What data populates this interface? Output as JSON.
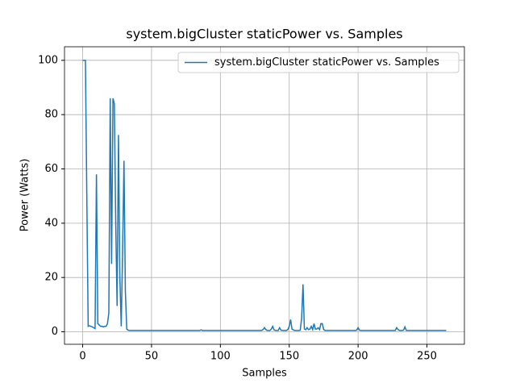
{
  "chart_data": {
    "type": "line",
    "title": "system.bigCluster staticPower vs. Samples",
    "x_label": "Samples",
    "y_label": "Power (Watts)",
    "x": [
      0,
      1,
      2,
      3,
      4,
      5,
      6,
      7,
      8,
      9,
      10,
      11,
      12,
      13,
      14,
      15,
      16,
      17,
      18,
      19,
      20,
      21,
      22,
      23,
      24,
      25,
      26,
      27,
      28,
      29,
      30,
      31,
      32,
      33,
      34,
      35,
      36,
      37,
      38,
      39,
      40,
      41,
      42,
      43,
      44,
      45,
      46,
      47,
      48,
      49,
      50,
      51,
      52,
      53,
      54,
      55,
      56,
      57,
      58,
      59,
      60,
      61,
      62,
      63,
      64,
      65,
      66,
      67,
      68,
      69,
      70,
      71,
      72,
      73,
      74,
      75,
      76,
      77,
      78,
      79,
      80,
      81,
      82,
      83,
      84,
      85,
      86,
      87,
      88,
      89,
      90,
      91,
      92,
      93,
      94,
      95,
      96,
      97,
      98,
      99,
      100,
      101,
      102,
      103,
      104,
      105,
      106,
      107,
      108,
      109,
      110,
      111,
      112,
      113,
      114,
      115,
      116,
      117,
      118,
      119,
      120,
      121,
      122,
      123,
      124,
      125,
      126,
      127,
      128,
      129,
      130,
      131,
      132,
      133,
      134,
      135,
      136,
      137,
      138,
      139,
      140,
      141,
      142,
      143,
      144,
      145,
      146,
      147,
      148,
      149,
      150,
      151,
      152,
      153,
      154,
      155,
      156,
      157,
      158,
      159,
      160,
      161,
      162,
      163,
      164,
      165,
      166,
      167,
      168,
      169,
      170,
      171,
      172,
      173,
      174,
      175,
      176,
      177,
      178,
      179,
      180,
      181,
      182,
      183,
      184,
      185,
      186,
      187,
      188,
      189,
      190,
      191,
      192,
      193,
      194,
      195,
      196,
      197,
      198,
      199,
      200,
      201,
      202,
      203,
      204,
      205,
      206,
      207,
      208,
      209,
      210,
      211,
      212,
      213,
      214,
      215,
      216,
      217,
      218,
      219,
      220,
      221,
      222,
      223,
      224,
      225,
      226,
      227,
      228,
      229,
      230,
      231,
      232,
      233,
      234,
      235,
      236,
      237,
      238,
      239,
      240,
      241,
      242,
      243,
      244,
      245,
      246,
      247,
      248,
      249,
      250,
      251,
      252,
      253,
      254,
      255,
      256,
      257,
      258,
      259,
      260,
      261,
      262,
      263,
      264
    ],
    "series": [
      {
        "name": "system.bigCluster staticPower vs. Samples",
        "color": "#1f77b4",
        "values": [
          100,
          100,
          100,
          50,
          2,
          2.2,
          2,
          1.8,
          1.5,
          1.2,
          58,
          3,
          2.5,
          2,
          2,
          1.8,
          2,
          2,
          3,
          7,
          86,
          25,
          86,
          84,
          40,
          9.5,
          72.5,
          20,
          2,
          30,
          63,
          15,
          1,
          0.6,
          0.5,
          0.5,
          0.5,
          0.5,
          0.5,
          0.5,
          0.5,
          0.5,
          0.5,
          0.5,
          0.5,
          0.5,
          0.5,
          0.5,
          0.5,
          0.5,
          0.5,
          0.5,
          0.5,
          0.5,
          0.5,
          0.5,
          0.5,
          0.5,
          0.5,
          0.5,
          0.5,
          0.5,
          0.5,
          0.5,
          0.5,
          0.5,
          0.5,
          0.5,
          0.5,
          0.5,
          0.5,
          0.5,
          0.5,
          0.5,
          0.5,
          0.5,
          0.5,
          0.5,
          0.5,
          0.5,
          0.5,
          0.5,
          0.5,
          0.5,
          0.5,
          0.5,
          0.7,
          0.5,
          0.5,
          0.5,
          0.5,
          0.5,
          0.5,
          0.5,
          0.5,
          0.5,
          0.5,
          0.5,
          0.5,
          0.5,
          0.5,
          0.5,
          0.5,
          0.5,
          0.5,
          0.5,
          0.5,
          0.5,
          0.5,
          0.5,
          0.5,
          0.5,
          0.5,
          0.5,
          0.5,
          0.5,
          0.5,
          0.5,
          0.5,
          0.5,
          0.5,
          0.5,
          0.5,
          0.5,
          0.5,
          0.5,
          0.5,
          0.5,
          0.5,
          0.5,
          0.5,
          0.8,
          1.5,
          0.8,
          0.5,
          0.5,
          0.5,
          1,
          2,
          0.7,
          0.5,
          0.5,
          0.5,
          1.5,
          0.6,
          0.5,
          0.5,
          0.5,
          0.5,
          0.8,
          2,
          4.5,
          1,
          0.7,
          0.5,
          0.5,
          0.5,
          0.5,
          0.6,
          5,
          17.5,
          1,
          0.8,
          1.5,
          0.8,
          1,
          2,
          0.8,
          3,
          1,
          1,
          1.5,
          0.8,
          3,
          3,
          0.8,
          0.5,
          0.5,
          0.5,
          0.5,
          0.5,
          0.5,
          0.5,
          0.5,
          0.5,
          0.5,
          0.5,
          0.5,
          0.5,
          0.5,
          0.5,
          0.5,
          0.5,
          0.5,
          0.5,
          0.5,
          0.5,
          0.5,
          0.5,
          0.6,
          1.5,
          0.6,
          0.5,
          0.5,
          0.5,
          0.5,
          0.5,
          0.5,
          0.5,
          0.5,
          0.5,
          0.5,
          0.5,
          0.5,
          0.5,
          0.5,
          0.5,
          0.5,
          0.5,
          0.5,
          0.5,
          0.5,
          0.5,
          0.5,
          0.5,
          0.5,
          0.5,
          0.5,
          1.5,
          0.8,
          0.5,
          0.5,
          0.5,
          0.6,
          1.8,
          0.5,
          0.5,
          0.5,
          0.5,
          0.5,
          0.5,
          0.5,
          0.5,
          0.5,
          0.5,
          0.5,
          0.5,
          0.5,
          0.5,
          0.5,
          0.5,
          0.5,
          0.5,
          0.5,
          0.5,
          0.5,
          0.5,
          0.5,
          0.5,
          0.5,
          0.5,
          0.5,
          0.5,
          0.5,
          0.5
        ]
      }
    ],
    "xlim": [
      -13.2,
      277.2
    ],
    "ylim": [
      -4.6,
      105
    ],
    "xticks": [
      0,
      50,
      100,
      150,
      200,
      250
    ],
    "yticks": [
      0,
      20,
      40,
      60,
      80,
      100
    ],
    "grid": true,
    "legend": "upper right"
  }
}
